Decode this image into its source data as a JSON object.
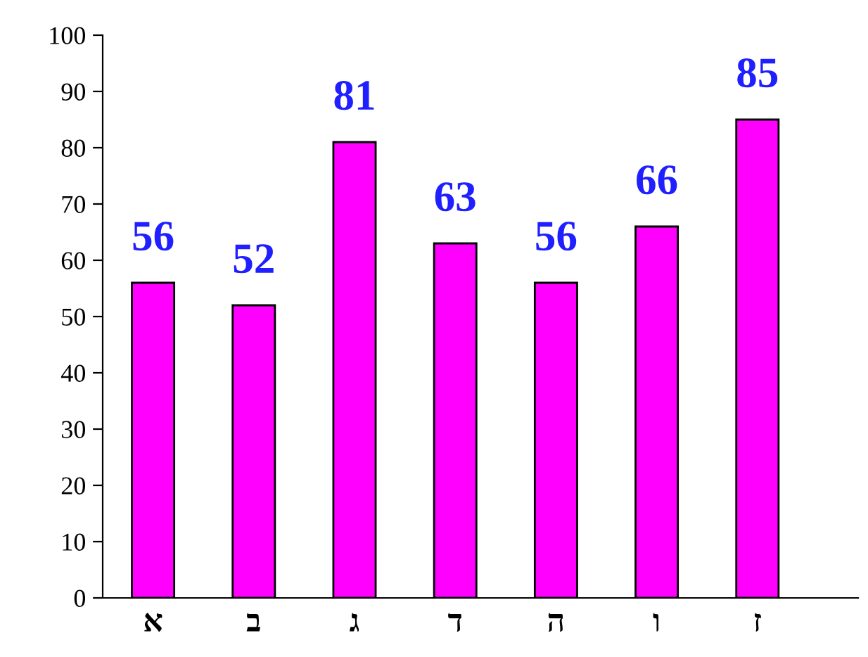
{
  "chart_data": {
    "type": "bar",
    "categories": [
      "א",
      "ב",
      "ג",
      "ד",
      "ה",
      "ו",
      "ז"
    ],
    "values": [
      56,
      52,
      81,
      63,
      56,
      66,
      85
    ],
    "color": "#ff00ff",
    "data_labels": true,
    "ylim": [
      0,
      100
    ],
    "yticks": [
      0,
      10,
      20,
      30,
      40,
      50,
      60,
      70,
      80,
      90,
      100
    ],
    "grid": false,
    "legend": false
  }
}
